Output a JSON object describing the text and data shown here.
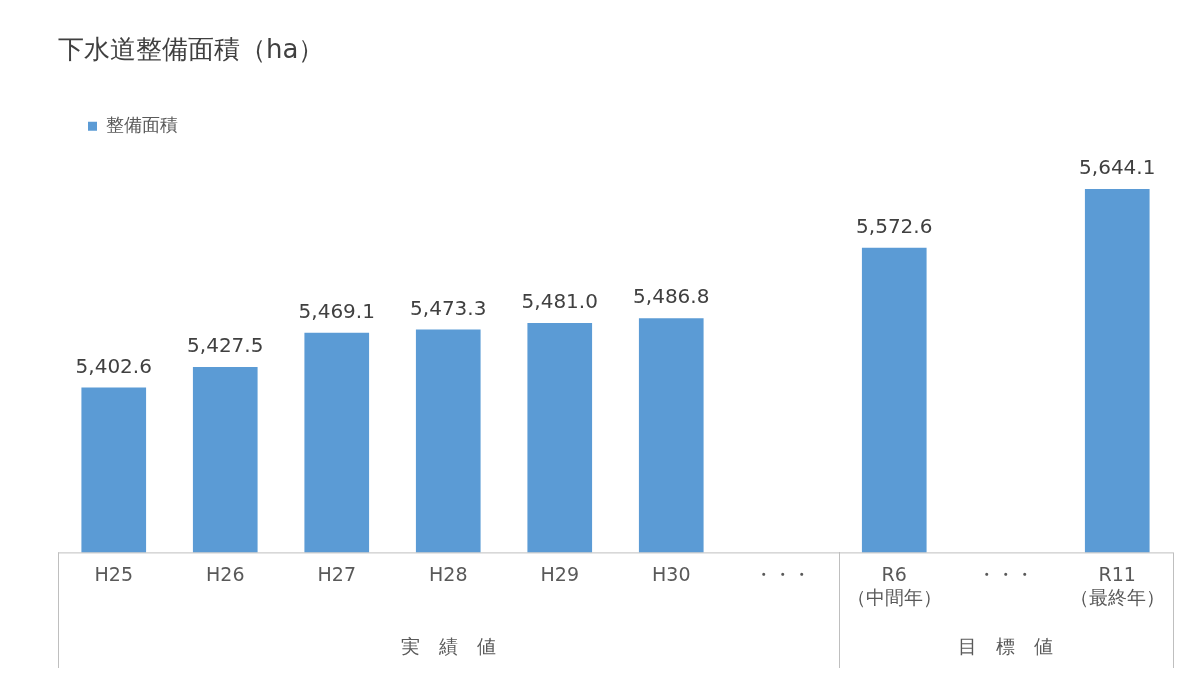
{
  "chart_data": {
    "type": "bar",
    "title": "下水道整備面積（ha）",
    "categories": [
      "H25",
      "H26",
      "H27",
      "H28",
      "H29",
      "H30",
      "・・・",
      "R6\n（中間年）",
      "・・・",
      "R11\n（最終年）"
    ],
    "series": [
      {
        "name": "整備面積",
        "color": "#5b9bd5",
        "values": [
          5402.6,
          5427.5,
          5469.1,
          5473.3,
          5481.0,
          5486.8,
          null,
          5572.6,
          null,
          5644.1
        ],
        "value_labels": [
          "5,402.6",
          "5,427.5",
          "5,469.1",
          "5,473.3",
          "5,481.0",
          "5,486.8",
          null,
          "5,572.6",
          null,
          "5,644.1"
        ]
      }
    ],
    "annotations": [
      "実　績　値",
      "目　標　値"
    ],
    "tick_labels": "x",
    "legend": "top left",
    "grid": false
  }
}
